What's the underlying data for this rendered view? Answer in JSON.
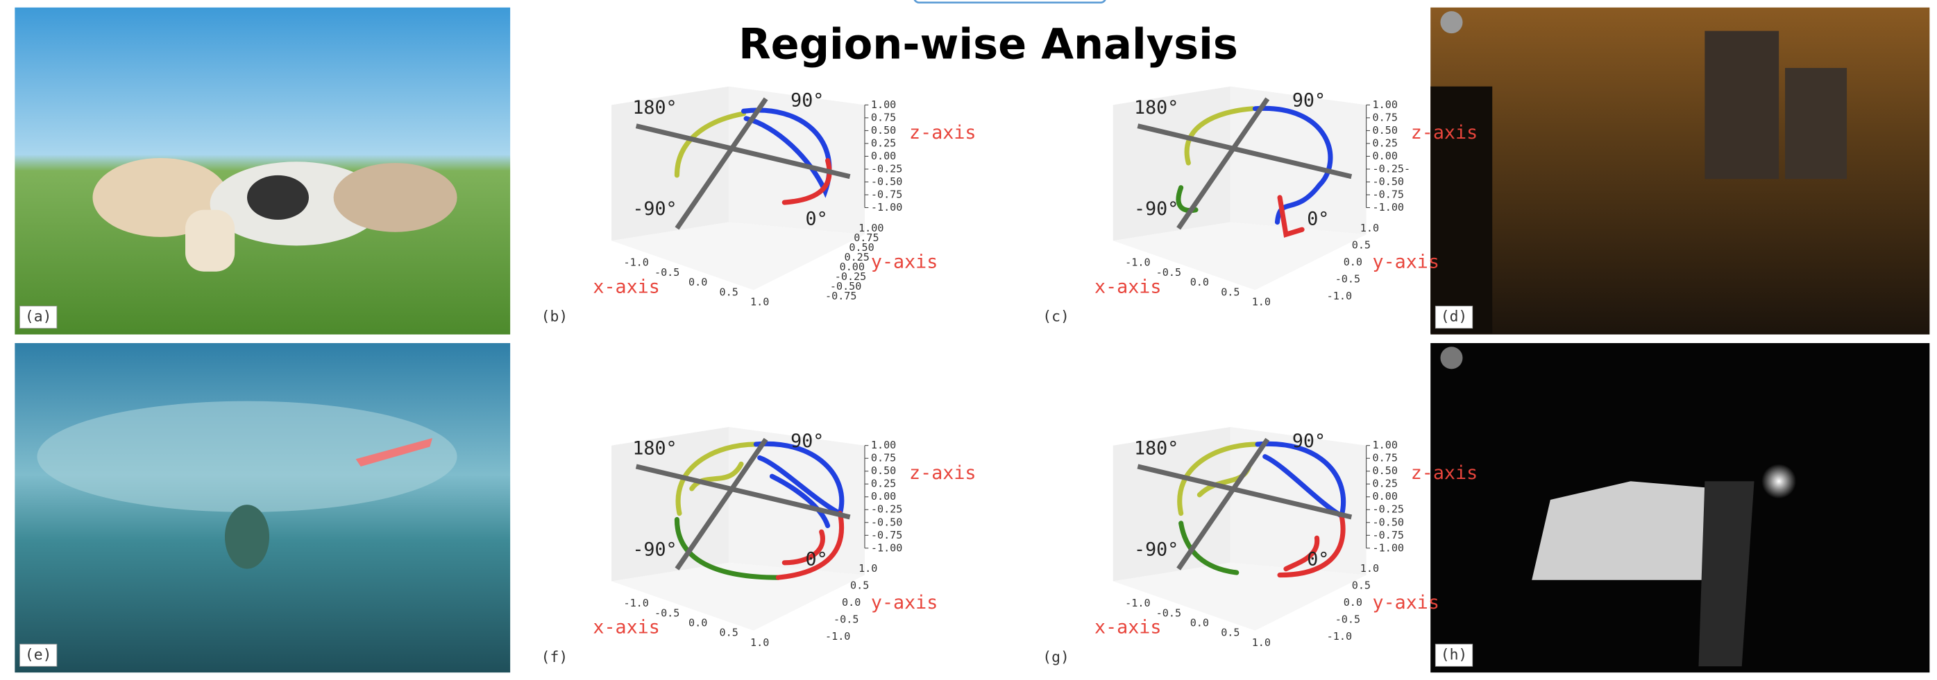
{
  "title": "Region-wise Analysis",
  "photos": [
    {
      "label": "(a)"
    },
    {
      "label": "(d)"
    },
    {
      "label": "(e)"
    },
    {
      "label": "(h)"
    }
  ],
  "plots": [
    {
      "label": "(b)",
      "angles": [
        "180°",
        "90°",
        "-90°",
        "0°"
      ],
      "axes": {
        "x": "x-axis",
        "y": "y-axis",
        "z": "z-axis"
      },
      "zticks": [
        "1.00",
        "0.75",
        "0.50",
        "0.25",
        "0.00",
        "-0.25",
        "-0.50",
        "-0.75",
        "-1.00"
      ],
      "yticks": [
        "1.00",
        "0.75",
        "0.50",
        "0.25",
        "0.00",
        "-0.25",
        "-0.50",
        "-0.75"
      ],
      "xticks": [
        "-1.0",
        "-0.5",
        "0.0",
        "0.5",
        "1.0"
      ]
    },
    {
      "label": "(c)",
      "angles": [
        "180°",
        "90°",
        "-90°",
        "0°"
      ],
      "axes": {
        "x": "x-axis",
        "y": "y-axis",
        "z": "z-axis"
      },
      "zticks": [
        "1.00",
        "0.75",
        "0.50",
        "0.25",
        "0.00",
        "-0.25-",
        "-0.50",
        "-0.75",
        "-1.00"
      ],
      "yticks": [
        "1.0",
        "0.5",
        "0.0",
        "-0.5",
        "-1.0"
      ],
      "xticks": [
        "-1.0",
        "-0.5",
        "0.0",
        "0.5",
        "1.0"
      ]
    },
    {
      "label": "(f)",
      "angles": [
        "180°",
        "90°",
        "-90°",
        "0°"
      ],
      "axes": {
        "x": "x-axis",
        "y": "y-axis",
        "z": "z-axis"
      },
      "zticks": [
        "1.00",
        "0.75",
        "0.50",
        "0.25",
        "0.00",
        "-0.25",
        "-0.50",
        "-0.75",
        "-1.00"
      ],
      "yticks": [
        "1.0",
        "0.5",
        "0.0",
        "-0.5",
        "-1.0"
      ],
      "xticks": [
        "-1.0",
        "-0.5",
        "0.0",
        "0.5",
        "1.0"
      ]
    },
    {
      "label": "(g)",
      "angles": [
        "180°",
        "90°",
        "-90°",
        "0°"
      ],
      "axes": {
        "x": "x-axis",
        "y": "y-axis",
        "z": "z-axis"
      },
      "zticks": [
        "1.00",
        "0.75",
        "0.50",
        "0.25",
        "0.00",
        "-0.25",
        "-0.50",
        "-0.75",
        "-1.00"
      ],
      "yticks": [
        "1.0",
        "0.5",
        "0.0",
        "-0.5",
        "-1.0"
      ],
      "xticks": [
        "-1.0",
        "-0.5",
        "0.0",
        "0.5",
        "1.0"
      ]
    }
  ]
}
